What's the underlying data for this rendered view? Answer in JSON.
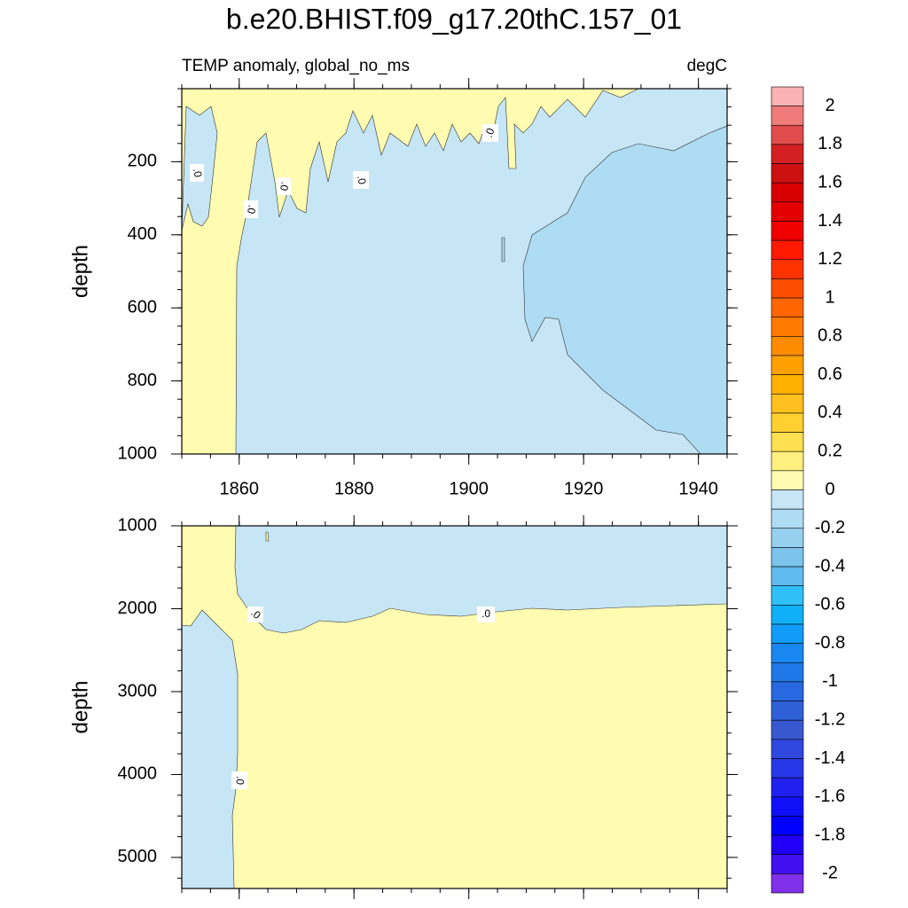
{
  "header": {
    "title": "b.e20.BHIST.f09_g17.20thC.157_01",
    "left_string": "TEMP anomaly, global_no_ms",
    "right_string": "degC"
  },
  "colorbar": {
    "levels": [
      2,
      1.8,
      1.6,
      1.4,
      1.2,
      1,
      0.8,
      0.6,
      0.4,
      0.2,
      0,
      -0.2,
      -0.4,
      -0.6,
      -0.8,
      -1,
      -1.2,
      -1.4,
      -1.6,
      -1.8,
      -2
    ],
    "colors": [
      "#fbb2b2",
      "#f07b7b",
      "#e04c4c",
      "#d42020",
      "#cc1010",
      "#d80000",
      "#e40000",
      "#f00000",
      "#ff1a00",
      "#ff3300",
      "#ff4d00",
      "#ff6600",
      "#ff7800",
      "#ff8c00",
      "#ffa000",
      "#ffb000",
      "#ffc020",
      "#ffd030",
      "#ffe050",
      "#fff080",
      "#fffbb0",
      "#c6e6f6",
      "#aedcf2",
      "#96d0ee",
      "#7cc4ec",
      "#60bcf0",
      "#30c0f8",
      "#10b0f8",
      "#109cf8",
      "#1888f0",
      "#2078e8",
      "#2868e0",
      "#3060d8",
      "#3858d0",
      "#3048e0",
      "#2838e8",
      "#2020f0",
      "#1010f8",
      "#0000ff",
      "#2000f8",
      "#4010f0",
      "#8030e8"
    ]
  },
  "chart_data": [
    {
      "type": "contour",
      "ylabel": "depth",
      "xlim": [
        1850,
        1945
      ],
      "xticks": [
        1860,
        1880,
        1900,
        1920,
        1940
      ],
      "xtick_labels": true,
      "ylim": [
        0,
        1000
      ],
      "yticks": [
        200,
        400,
        600,
        800,
        1000
      ],
      "y_reversed": true,
      "contour_labels": [
        ".0",
        ".0",
        ".0",
        ".0",
        ".0"
      ]
    },
    {
      "type": "contour",
      "ylabel": "depth",
      "xlim": [
        1850,
        1945
      ],
      "xticks": [
        1860,
        1880,
        1900,
        1920,
        1940
      ],
      "xtick_labels": false,
      "ylim": [
        1000,
        5375
      ],
      "yticks": [
        1000,
        2000,
        3000,
        4000,
        5000
      ],
      "y_reversed": true,
      "contour_labels": [
        ".0",
        ".0",
        ".0"
      ]
    }
  ]
}
